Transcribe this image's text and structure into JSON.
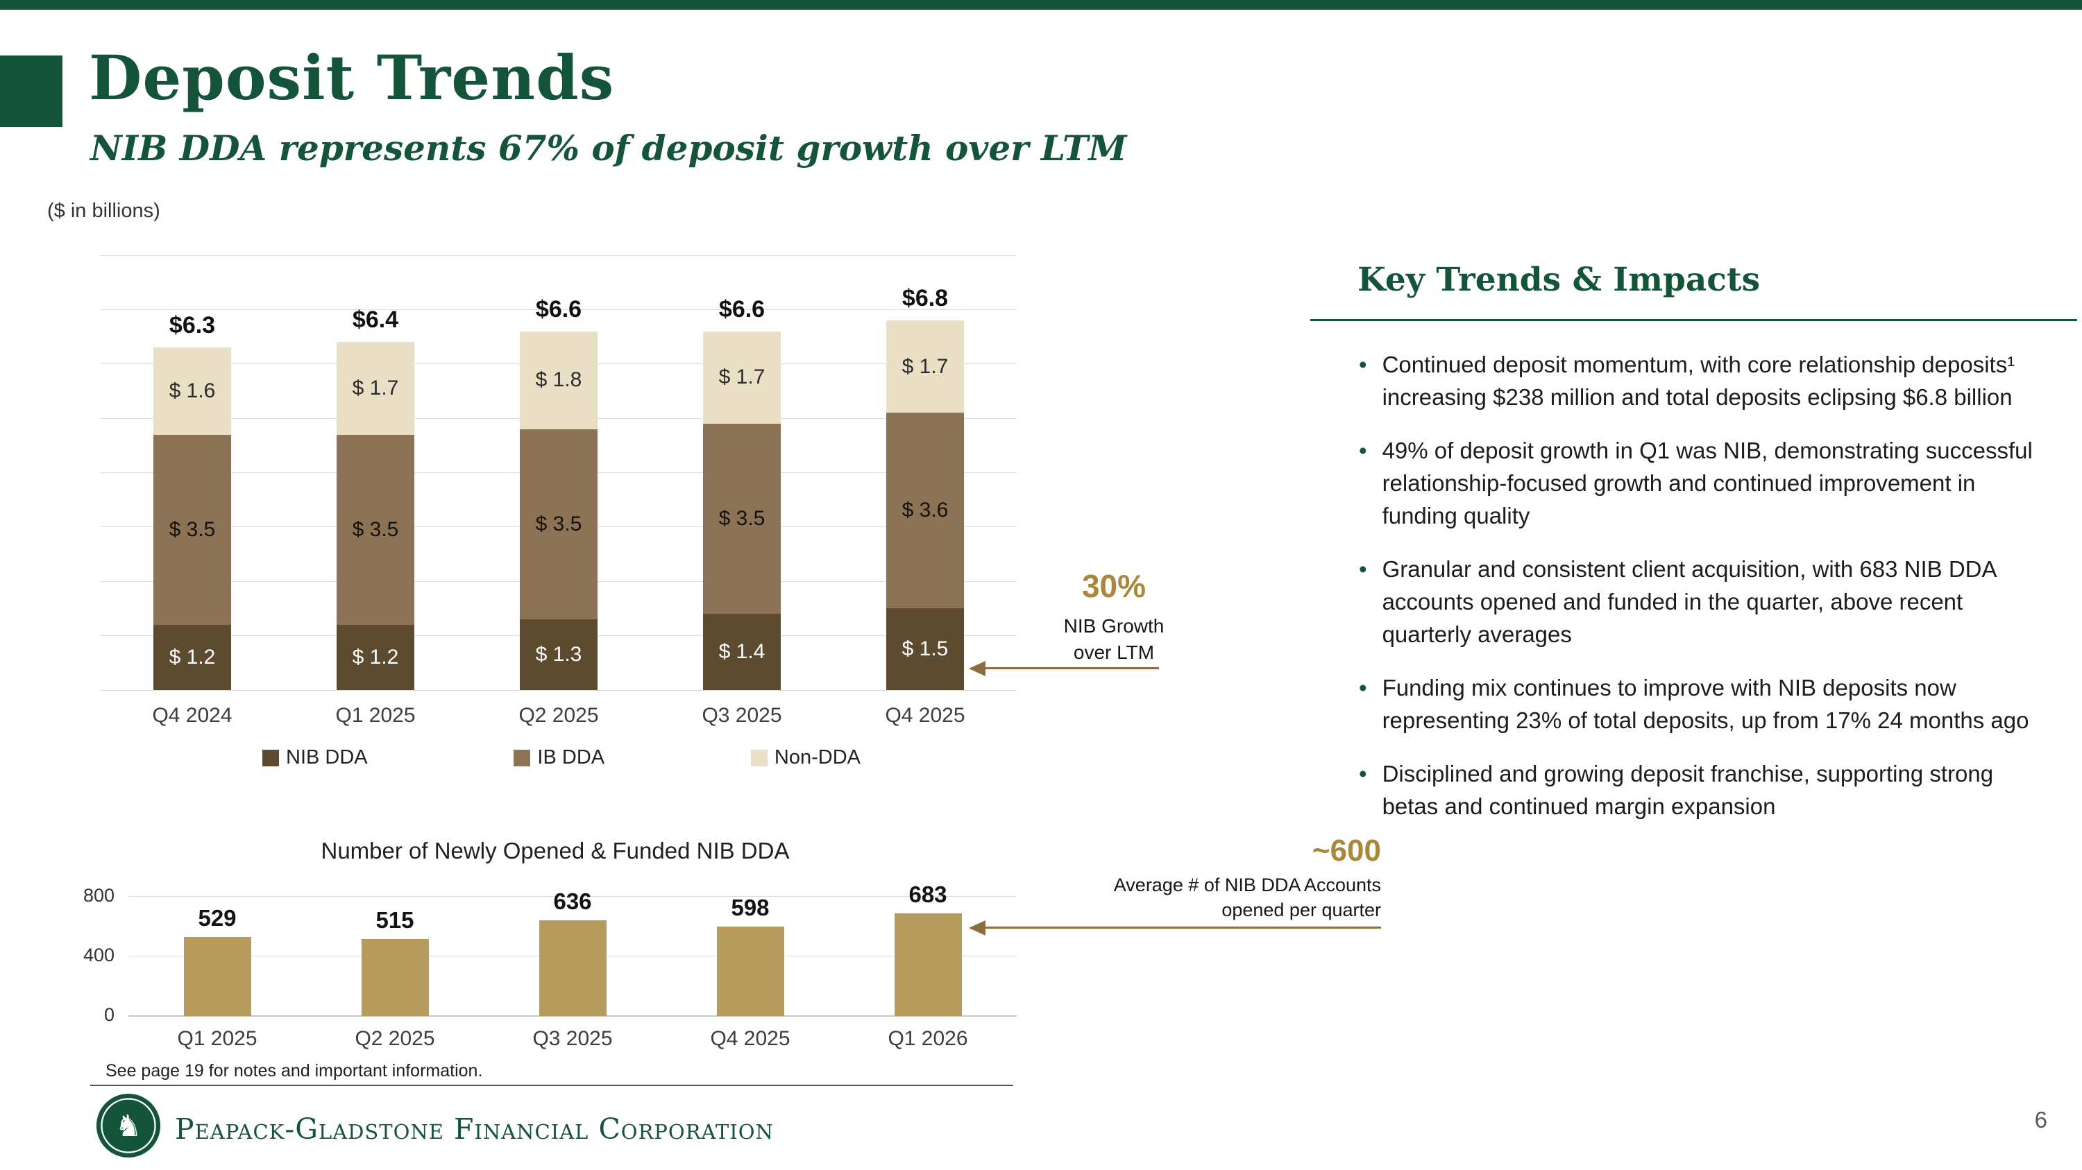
{
  "colors": {
    "green": "#14543A",
    "gold_text": "#A9883C",
    "arrow_brown": "#8B6D3E",
    "bar_gold": "#B69B5C"
  },
  "header": {
    "title": "Deposit Trends",
    "subtitle": "NIB DDA represents 67% of deposit growth over LTM",
    "units_note": "($ in billions)"
  },
  "chart_data": [
    {
      "type": "bar",
      "subtype": "stacked",
      "categories": [
        "Q4 2024",
        "Q1 2025",
        "Q2 2025",
        "Q3 2025",
        "Q4 2025"
      ],
      "series": [
        {
          "name": "NIB DDA",
          "color": "#5C4B2F",
          "label_color": "#FFFFFF",
          "values": [
            1.2,
            1.2,
            1.3,
            1.4,
            1.5
          ],
          "labels": [
            "$ 1.2",
            "$ 1.2",
            "$ 1.3",
            "$ 1.4",
            "$ 1.5"
          ]
        },
        {
          "name": "IB DDA",
          "color": "#8C7355",
          "label_color": "#14110B",
          "values": [
            3.5,
            3.5,
            3.5,
            3.5,
            3.6
          ],
          "labels": [
            "$ 3.5",
            "$ 3.5",
            "$ 3.5",
            "$ 3.5",
            "$ 3.6"
          ]
        },
        {
          "name": "Non-DDA",
          "color": "#E8DFC5",
          "label_color": "#2B2B2B",
          "values": [
            1.6,
            1.7,
            1.8,
            1.7,
            1.7
          ],
          "labels": [
            "$ 1.6",
            "$ 1.7",
            "$ 1.8",
            "$ 1.7",
            "$ 1.7"
          ]
        }
      ],
      "totals": [
        "$6.3",
        "$6.4",
        "$6.6",
        "$6.6",
        "$6.8"
      ],
      "ylim": [
        0,
        8
      ],
      "grid": true,
      "legend_position": "bottom",
      "annotation": {
        "value": "30%",
        "label_lines": [
          "NIB Growth",
          "over LTM"
        ]
      }
    },
    {
      "type": "bar",
      "title": "Number of Newly Opened & Funded NIB DDA",
      "categories": [
        "Q1 2025",
        "Q2 2025",
        "Q3 2025",
        "Q4 2025",
        "Q1 2026"
      ],
      "values": [
        529,
        515,
        636,
        598,
        683
      ],
      "yticks": [
        0,
        400,
        800
      ],
      "ylim": [
        0,
        800
      ],
      "grid": true,
      "annotation": {
        "value": "~600",
        "label_lines": [
          "Average # of NIB DDA Accounts",
          "opened per quarter"
        ]
      }
    }
  ],
  "key_trends": {
    "heading": "Key Trends & Impacts",
    "bullets": [
      "Continued deposit momentum, with core relationship deposits¹ increasing $238 million and total deposits eclipsing $6.8 billion",
      "49% of deposit growth in Q1 was NIB, demonstrating successful relationship-focused growth and continued improvement in funding quality",
      "Granular and consistent client acquisition, with 683 NIB DDA accounts opened and funded in the quarter, above recent quarterly averages",
      "Funding mix continues to improve with NIB deposits now representing 23% of total deposits, up from 17% 24 months ago",
      "Disciplined and growing deposit franchise, supporting strong betas and continued margin expansion"
    ]
  },
  "footer": {
    "note": "See page 19 for notes and important information.",
    "company": "Peapack-Gladstone Financial Corporation",
    "page_number": "6"
  }
}
